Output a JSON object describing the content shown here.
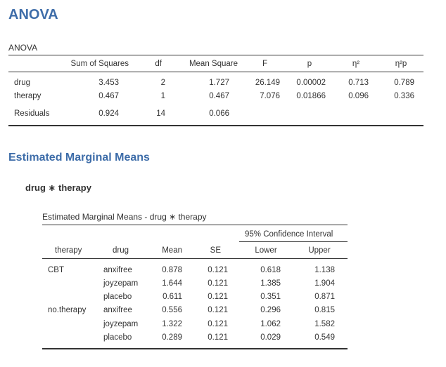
{
  "anova_heading": "ANOVA",
  "anova_table": {
    "caption": "ANOVA",
    "columns": [
      "",
      "Sum of Squares",
      "df",
      "Mean Square",
      "F",
      "p",
      "η²",
      "η²p"
    ],
    "rows": [
      {
        "term": "drug",
        "ss": "3.453",
        "df": "2",
        "ms": "1.727",
        "f": "26.149",
        "p": "0.00002",
        "eta2": "0.713",
        "eta2p": "0.789"
      },
      {
        "term": "therapy",
        "ss": "0.467",
        "df": "1",
        "ms": "0.467",
        "f": "7.076",
        "p": "0.01866",
        "eta2": "0.096",
        "eta2p": "0.336"
      },
      {
        "term": "Residuals",
        "ss": "0.924",
        "df": "14",
        "ms": "0.066",
        "f": "",
        "p": "",
        "eta2": "",
        "eta2p": ""
      }
    ]
  },
  "emm_heading": "Estimated Marginal Means",
  "emm_subheading": "drug ∗ therapy",
  "emm_table": {
    "caption": "Estimated Marginal Means - drug ∗ therapy",
    "ci_header": "95% Confidence Interval",
    "columns": [
      "therapy",
      "drug",
      "Mean",
      "SE",
      "Lower",
      "Upper"
    ],
    "rows": [
      {
        "therapy": "CBT",
        "drug": "anxifree",
        "mean": "0.878",
        "se": "0.121",
        "lower": "0.618",
        "upper": "1.138"
      },
      {
        "therapy": "",
        "drug": "joyzepam",
        "mean": "1.644",
        "se": "0.121",
        "lower": "1.385",
        "upper": "1.904"
      },
      {
        "therapy": "",
        "drug": "placebo",
        "mean": "0.611",
        "se": "0.121",
        "lower": "0.351",
        "upper": "0.871"
      },
      {
        "therapy": "no.therapy",
        "drug": "anxifree",
        "mean": "0.556",
        "se": "0.121",
        "lower": "0.296",
        "upper": "0.815"
      },
      {
        "therapy": "",
        "drug": "joyzepam",
        "mean": "1.322",
        "se": "0.121",
        "lower": "1.062",
        "upper": "1.582"
      },
      {
        "therapy": "",
        "drug": "placebo",
        "mean": "0.289",
        "se": "0.121",
        "lower": "0.029",
        "upper": "0.549"
      }
    ]
  },
  "colors": {
    "heading": "#3e6da9",
    "text": "#333333",
    "rule": "#333333"
  }
}
